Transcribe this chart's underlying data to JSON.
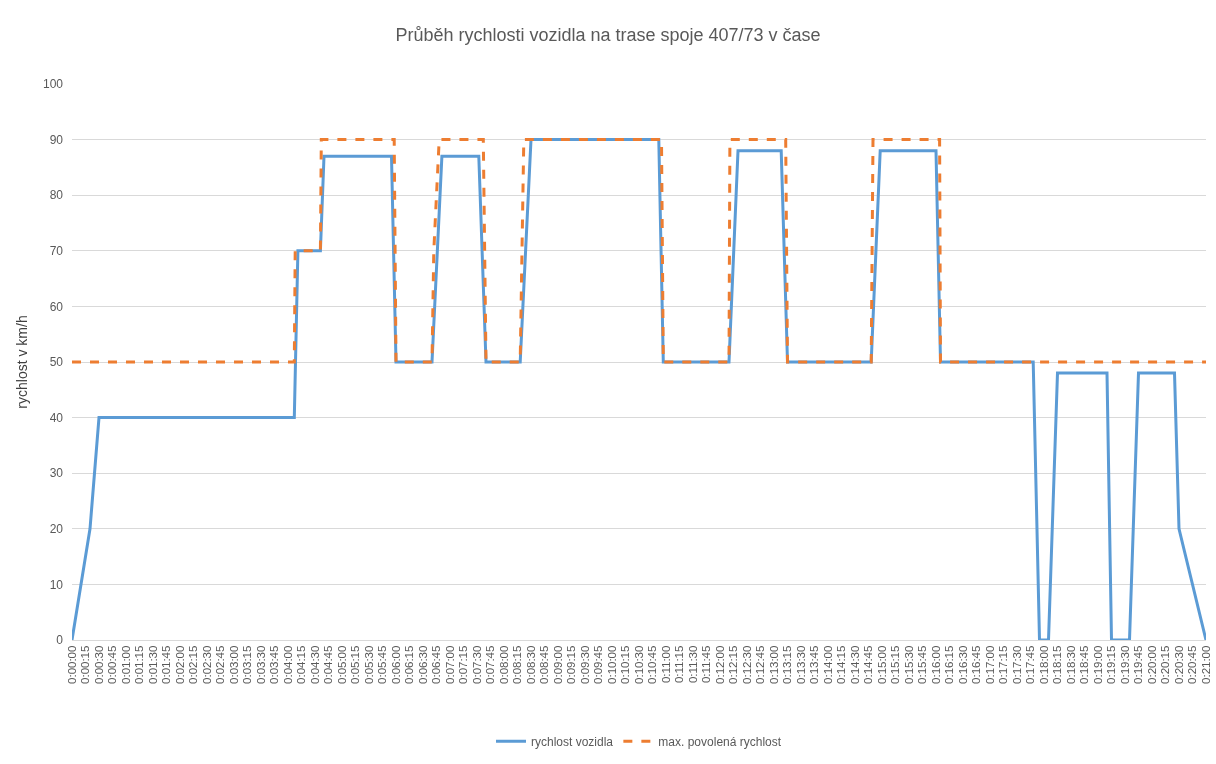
{
  "chart_data": {
    "type": "line",
    "title": "Průběh rychlosti vozidla na trase spoje 407/73 v čase",
    "ylabel": "rychlost v km/h",
    "series": [
      {
        "name": "rychlost vozidla",
        "color": "#5b9bd5",
        "line_style": "solid",
        "x": [
          0,
          20,
          30,
          247,
          251,
          276,
          280,
          355,
          360,
          400,
          411,
          452,
          460,
          498,
          510,
          652,
          657,
          730,
          740,
          788,
          795,
          888,
          898,
          960,
          965,
          1068,
          1075,
          1085,
          1095,
          1150,
          1155,
          1175,
          1185,
          1225,
          1230,
          1260
        ],
        "values": [
          0,
          20,
          40,
          40,
          70,
          70,
          87,
          87,
          50,
          50,
          87,
          87,
          50,
          50,
          90,
          90,
          50,
          50,
          88,
          88,
          50,
          50,
          88,
          88,
          50,
          50,
          0,
          0,
          48,
          48,
          0,
          0,
          48,
          48,
          20,
          0
        ]
      },
      {
        "name": "max. povolená rychlost",
        "color": "#ed7d31",
        "line_style": "dashed",
        "x": [
          0,
          247,
          248,
          276,
          277,
          358,
          360,
          400,
          402,
          408,
          457,
          460,
          498,
          502,
          655,
          657,
          730,
          731,
          793,
          795,
          888,
          890,
          964,
          965,
          1260
        ],
        "values": [
          50,
          50,
          70,
          70,
          90,
          90,
          50,
          50,
          70,
          90,
          90,
          50,
          50,
          90,
          90,
          50,
          50,
          90,
          90,
          50,
          50,
          90,
          90,
          50,
          50
        ]
      }
    ],
    "xlim": [
      0,
      1260
    ],
    "xticks": [
      {
        "value": 0,
        "label": "0:00:00"
      },
      {
        "value": 15,
        "label": "0:00:15"
      },
      {
        "value": 30,
        "label": "0:00:30"
      },
      {
        "value": 45,
        "label": "0:00:45"
      },
      {
        "value": 60,
        "label": "0:01:00"
      },
      {
        "value": 75,
        "label": "0:01:15"
      },
      {
        "value": 90,
        "label": "0:01:30"
      },
      {
        "value": 105,
        "label": "0:01:45"
      },
      {
        "value": 120,
        "label": "0:02:00"
      },
      {
        "value": 135,
        "label": "0:02:15"
      },
      {
        "value": 150,
        "label": "0:02:30"
      },
      {
        "value": 165,
        "label": "0:02:45"
      },
      {
        "value": 180,
        "label": "0:03:00"
      },
      {
        "value": 195,
        "label": "0:03:15"
      },
      {
        "value": 210,
        "label": "0:03:30"
      },
      {
        "value": 225,
        "label": "0:03:45"
      },
      {
        "value": 240,
        "label": "0:04:00"
      },
      {
        "value": 255,
        "label": "0:04:15"
      },
      {
        "value": 270,
        "label": "0:04:30"
      },
      {
        "value": 285,
        "label": "0:04:45"
      },
      {
        "value": 300,
        "label": "0:05:00"
      },
      {
        "value": 315,
        "label": "0:05:15"
      },
      {
        "value": 330,
        "label": "0:05:30"
      },
      {
        "value": 345,
        "label": "0:05:45"
      },
      {
        "value": 360,
        "label": "0:06:00"
      },
      {
        "value": 375,
        "label": "0:06:15"
      },
      {
        "value": 390,
        "label": "0:06:30"
      },
      {
        "value": 405,
        "label": "0:06:45"
      },
      {
        "value": 420,
        "label": "0:07:00"
      },
      {
        "value": 435,
        "label": "0:07:15"
      },
      {
        "value": 450,
        "label": "0:07:30"
      },
      {
        "value": 465,
        "label": "0:07:45"
      },
      {
        "value": 480,
        "label": "0:08:00"
      },
      {
        "value": 495,
        "label": "0:08:15"
      },
      {
        "value": 510,
        "label": "0:08:30"
      },
      {
        "value": 525,
        "label": "0:08:45"
      },
      {
        "value": 540,
        "label": "0:09:00"
      },
      {
        "value": 555,
        "label": "0:09:15"
      },
      {
        "value": 570,
        "label": "0:09:30"
      },
      {
        "value": 585,
        "label": "0:09:45"
      },
      {
        "value": 600,
        "label": "0:10:00"
      },
      {
        "value": 615,
        "label": "0:10:15"
      },
      {
        "value": 630,
        "label": "0:10:30"
      },
      {
        "value": 645,
        "label": "0:10:45"
      },
      {
        "value": 660,
        "label": "0:11:00"
      },
      {
        "value": 675,
        "label": "0:11:15"
      },
      {
        "value": 690,
        "label": "0:11:30"
      },
      {
        "value": 705,
        "label": "0:11:45"
      },
      {
        "value": 720,
        "label": "0:12:00"
      },
      {
        "value": 735,
        "label": "0:12:15"
      },
      {
        "value": 750,
        "label": "0:12:30"
      },
      {
        "value": 765,
        "label": "0:12:45"
      },
      {
        "value": 780,
        "label": "0:13:00"
      },
      {
        "value": 795,
        "label": "0:13:15"
      },
      {
        "value": 810,
        "label": "0:13:30"
      },
      {
        "value": 825,
        "label": "0:13:45"
      },
      {
        "value": 840,
        "label": "0:14:00"
      },
      {
        "value": 855,
        "label": "0:14:15"
      },
      {
        "value": 870,
        "label": "0:14:30"
      },
      {
        "value": 885,
        "label": "0:14:45"
      },
      {
        "value": 900,
        "label": "0:15:00"
      },
      {
        "value": 915,
        "label": "0:15:15"
      },
      {
        "value": 930,
        "label": "0:15:30"
      },
      {
        "value": 945,
        "label": "0:15:45"
      },
      {
        "value": 960,
        "label": "0:16:00"
      },
      {
        "value": 975,
        "label": "0:16:15"
      },
      {
        "value": 990,
        "label": "0:16:30"
      },
      {
        "value": 1005,
        "label": "0:16:45"
      },
      {
        "value": 1020,
        "label": "0:17:00"
      },
      {
        "value": 1035,
        "label": "0:17:15"
      },
      {
        "value": 1050,
        "label": "0:17:30"
      },
      {
        "value": 1065,
        "label": "0:17:45"
      },
      {
        "value": 1080,
        "label": "0:18:00"
      },
      {
        "value": 1095,
        "label": "0:18:15"
      },
      {
        "value": 1110,
        "label": "0:18:30"
      },
      {
        "value": 1125,
        "label": "0:18:45"
      },
      {
        "value": 1140,
        "label": "0:19:00"
      },
      {
        "value": 1155,
        "label": "0:19:15"
      },
      {
        "value": 1170,
        "label": "0:19:30"
      },
      {
        "value": 1185,
        "label": "0:19:45"
      },
      {
        "value": 1200,
        "label": "0:20:00"
      },
      {
        "value": 1215,
        "label": "0:20:15"
      },
      {
        "value": 1230,
        "label": "0:20:30"
      },
      {
        "value": 1245,
        "label": "0:20:45"
      },
      {
        "value": 1260,
        "label": "0:21:00"
      }
    ],
    "ylim": [
      0,
      100
    ],
    "yticks": [
      0,
      10,
      20,
      30,
      40,
      50,
      60,
      70,
      80,
      90,
      100
    ],
    "grid": "y",
    "legend": "bottom",
    "marker": "none"
  }
}
